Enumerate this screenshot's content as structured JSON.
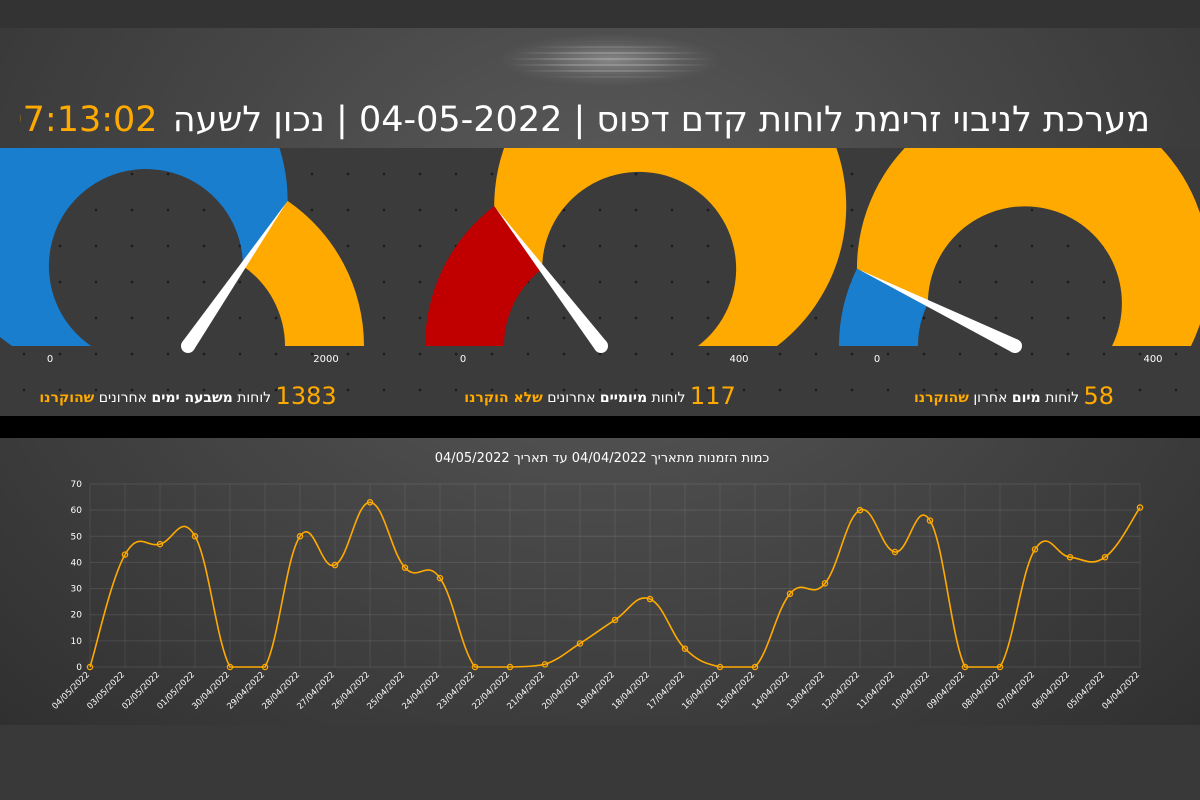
{
  "header": {
    "title_text": "מערכת לניבוי זרימת לוחות קדם דפוס | 04-05-2022 | נכון לשעה",
    "clock": "07:13:02"
  },
  "colors": {
    "accent": "#ffaa00",
    "blue": "#1a7ecf",
    "red": "#c00000",
    "needle": "#ffffff"
  },
  "gauges": [
    {
      "id": "week",
      "min_label": "0",
      "max_label": "2000",
      "min": 0,
      "max": 2000,
      "value": 1383,
      "bands": [
        {
          "to": 1383,
          "color": "blue"
        },
        {
          "to": 2000,
          "color": "accent"
        }
      ],
      "caption": {
        "number": "1383",
        "pre": "לוחות",
        "bold": "משבעה ימים",
        "mid": "אחרונים",
        "accent": "שהוקרנו"
      }
    },
    {
      "id": "twodays",
      "min_label": "0",
      "max_label": "400",
      "min": 0,
      "max": 400,
      "value": 117,
      "bands": [
        {
          "to": 117,
          "color": "red"
        },
        {
          "to": 400,
          "color": "accent"
        }
      ],
      "caption": {
        "number": "117",
        "pre": "לוחות",
        "bold": "מיומיים",
        "mid": "אחרונים",
        "accent": "שלא הוקרנו"
      }
    },
    {
      "id": "lastday",
      "min_label": "0",
      "max_label": "400",
      "min": 0,
      "max": 400,
      "value": 58,
      "bands": [
        {
          "to": 58,
          "color": "blue"
        },
        {
          "to": 400,
          "color": "accent"
        }
      ],
      "caption": {
        "number": "58",
        "pre": "לוחות",
        "bold": "מיום",
        "mid": "אחרון",
        "accent": "שהוקרנו"
      }
    }
  ],
  "chart_data": {
    "type": "line",
    "title": "כמות הזמנות מתאריך 04/04/2022 עד תאריך 04/05/2022",
    "xlabel": "",
    "ylabel": "",
    "ylim": [
      0,
      70
    ],
    "yticks": [
      0,
      10,
      20,
      30,
      40,
      50,
      60,
      70
    ],
    "grid": true,
    "legend": "none",
    "series_color": "#ffaa00",
    "categories": [
      "04/05/2022",
      "03/05/2022",
      "02/05/2022",
      "01/05/2022",
      "30/04/2022",
      "29/04/2022",
      "28/04/2022",
      "27/04/2022",
      "26/04/2022",
      "25/04/2022",
      "24/04/2022",
      "23/04/2022",
      "22/04/2022",
      "21/04/2022",
      "20/04/2022",
      "19/04/2022",
      "18/04/2022",
      "17/04/2022",
      "16/04/2022",
      "15/04/2022",
      "14/04/2022",
      "13/04/2022",
      "12/04/2022",
      "11/04/2022",
      "10/04/2022",
      "09/04/2022",
      "08/04/2022",
      "07/04/2022",
      "06/04/2022",
      "05/04/2022",
      "04/04/2022"
    ],
    "values": [
      0,
      43,
      47,
      50,
      0,
      0,
      50,
      39,
      63,
      38,
      34,
      0,
      0,
      1,
      9,
      18,
      26,
      7,
      0,
      0,
      28,
      32,
      60,
      44,
      56,
      0,
      0,
      45,
      42,
      42,
      61
    ]
  }
}
